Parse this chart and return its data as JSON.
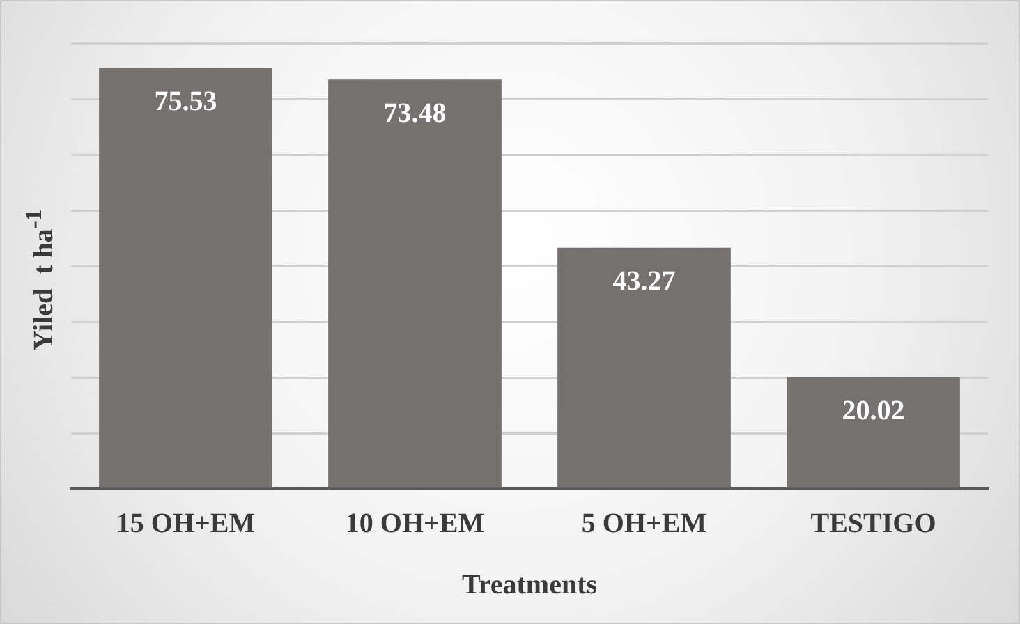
{
  "chart_data": {
    "type": "bar",
    "xlabel": "Treatments",
    "ylabel": "Yiled  t ha$^{-1}$",
    "categories": [
      "15 OH+EM",
      "10 OH+EM",
      "5 OH+EM",
      "TESTIGO"
    ],
    "values": [
      75.53,
      73.48,
      43.27,
      20.02
    ],
    "color": "#767171",
    "ylim": [
      0,
      80
    ],
    "yticks": [
      {
        "value": 0,
        "label": null
      },
      {
        "value": 10,
        "label": null
      },
      {
        "value": 20,
        "label": null
      },
      {
        "value": 30,
        "label": null
      },
      {
        "value": 40,
        "label": null
      },
      {
        "value": 50,
        "label": null
      },
      {
        "value": 60,
        "label": null
      },
      {
        "value": 70,
        "label": null
      },
      {
        "value": 80,
        "label": null
      }
    ],
    "grid": "y",
    "legend": false,
    "data_labels": true
  }
}
